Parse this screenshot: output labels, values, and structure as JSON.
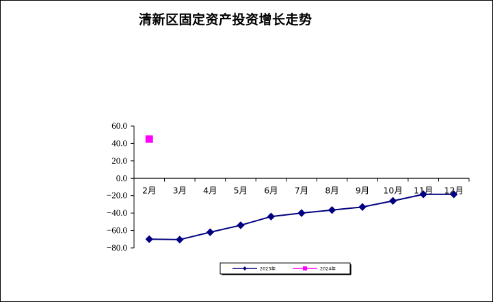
{
  "chart_data": {
    "type": "line",
    "title": "清新区固定资产投资增长走势",
    "xlabel": "",
    "ylabel": "",
    "categories": [
      "2月",
      "3月",
      "4月",
      "5月",
      "6月",
      "7月",
      "8月",
      "9月",
      "10月",
      "11月",
      "12月"
    ],
    "y_ticks": [
      "60.0",
      "40.0",
      "20.0",
      "0.0",
      "−20.0",
      "−40.0",
      "−60.0",
      "−80.0"
    ],
    "ylim": [
      -80,
      60
    ],
    "grid": false,
    "legend_position": "bottom",
    "series": [
      {
        "name": "2023年",
        "color": "#000080",
        "marker": "diamond",
        "values": [
          -70.0,
          -70.5,
          -62.0,
          -54.0,
          -44.0,
          -40.0,
          -36.5,
          -33.0,
          -26.0,
          -18.5,
          -18.5
        ]
      },
      {
        "name": "2024年",
        "color": "#ff00ff",
        "marker": "square",
        "values": [
          45.0,
          null,
          null,
          null,
          null,
          null,
          null,
          null,
          null,
          null,
          null
        ]
      }
    ]
  }
}
